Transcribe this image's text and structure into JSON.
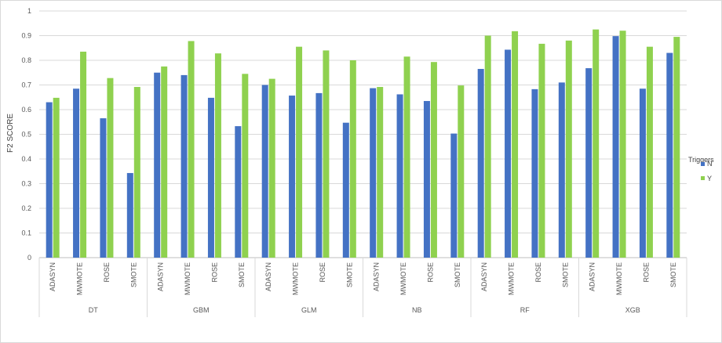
{
  "chart_data": {
    "type": "bar",
    "ylabel": "F2 SCORE",
    "xlabel": "",
    "ylim": [
      0,
      1
    ],
    "yticks": [
      "0",
      "0.1",
      "0.2",
      "0.3",
      "0.4",
      "0.5",
      "0.6",
      "0.7",
      "0.8",
      "0.9",
      "1"
    ],
    "grid": true,
    "legend": {
      "title": "Triggers",
      "position": "right",
      "entries": [
        "N",
        "Y"
      ]
    },
    "colors": {
      "N": "#4472c4",
      "Y": "#8fd14f"
    },
    "groups": [
      "DT",
      "GBM",
      "GLM",
      "NB",
      "RF",
      "XGB"
    ],
    "methods": [
      "ADASYN",
      "MWMOTE",
      "ROSE",
      "SMOTE"
    ],
    "series": [
      {
        "name": "N",
        "values": [
          0.63,
          0.685,
          0.565,
          0.343,
          0.75,
          0.74,
          0.648,
          0.533,
          0.7,
          0.657,
          0.667,
          0.547,
          0.687,
          0.662,
          0.635,
          0.503,
          0.765,
          0.843,
          0.683,
          0.71,
          0.768,
          0.898,
          0.685,
          0.83
        ]
      },
      {
        "name": "Y",
        "values": [
          0.648,
          0.835,
          0.728,
          0.692,
          0.775,
          0.878,
          0.828,
          0.745,
          0.725,
          0.855,
          0.84,
          0.8,
          0.692,
          0.815,
          0.793,
          0.698,
          0.9,
          0.918,
          0.867,
          0.88,
          0.925,
          0.92,
          0.855,
          0.895
        ]
      }
    ]
  }
}
